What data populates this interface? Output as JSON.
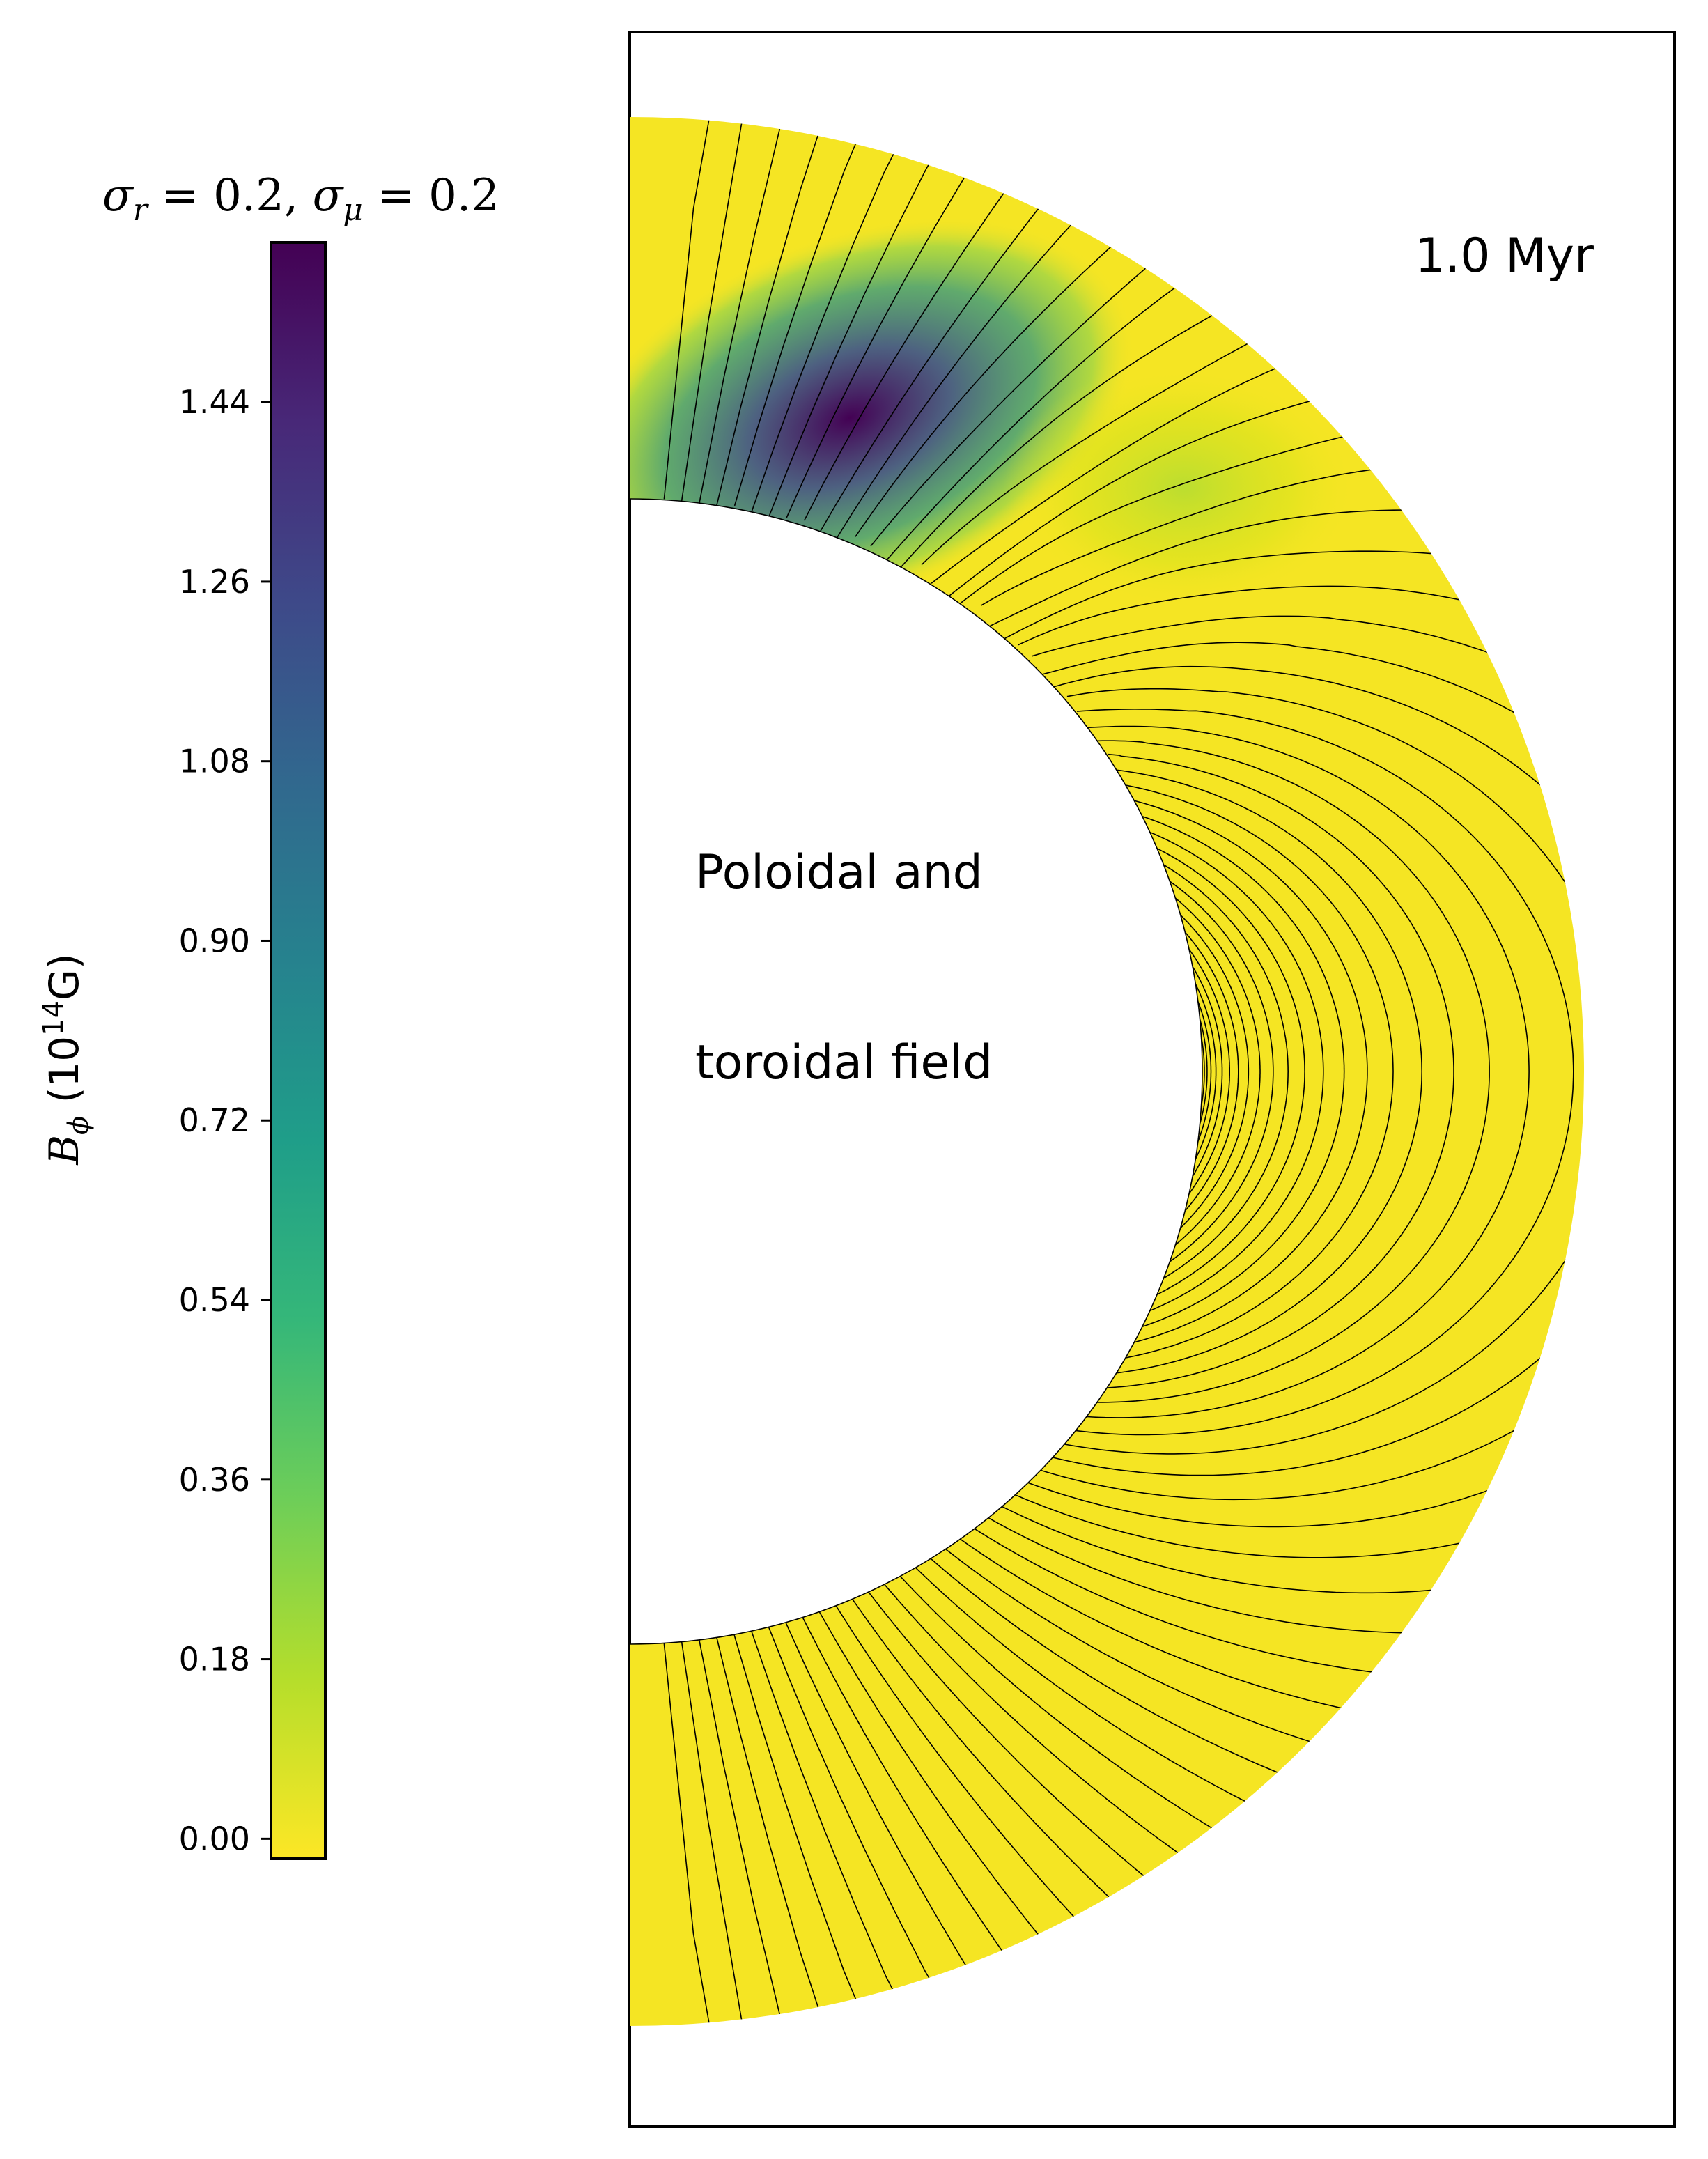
{
  "chart_data": {
    "type": "heatmap",
    "colorbar": {
      "title": "σr = 0.2, σμ = 0.2",
      "title_parts": {
        "s1": "σ",
        "sub1": "r",
        "v1": " = 0.2, ",
        "s2": "σ",
        "sub2": "μ",
        "v2": " = 0.2"
      },
      "label": "Bϕ (10¹⁴G)",
      "label_parts": {
        "sym": "B",
        "sub": "ϕ",
        "pre": " (10",
        "sup": "14",
        "post": "G)"
      },
      "range": [
        -0.02,
        1.6
      ],
      "ticks": [
        0.0,
        0.18,
        0.36,
        0.54,
        0.72,
        0.9,
        1.08,
        1.26,
        1.44
      ],
      "tick_labels": [
        "0.00",
        "0.18",
        "0.36",
        "0.54",
        "0.72",
        "0.90",
        "1.08",
        "1.26",
        "1.44"
      ],
      "colormap": "viridis_r",
      "colors": [
        "#440154",
        "#482878",
        "#3e4989",
        "#31688e",
        "#26828e",
        "#1f9e89",
        "#35b779",
        "#6ece58",
        "#b5de2b",
        "#fde725"
      ]
    },
    "annotations": {
      "time": "1.0   Myr",
      "field_line1": "Poloidal and",
      "field_line2": "toroidal field"
    },
    "field_line_color": "#000000",
    "field_line_count": 48,
    "crust_inner_radius": 0.6,
    "crust_outer_radius": 1.0
  }
}
